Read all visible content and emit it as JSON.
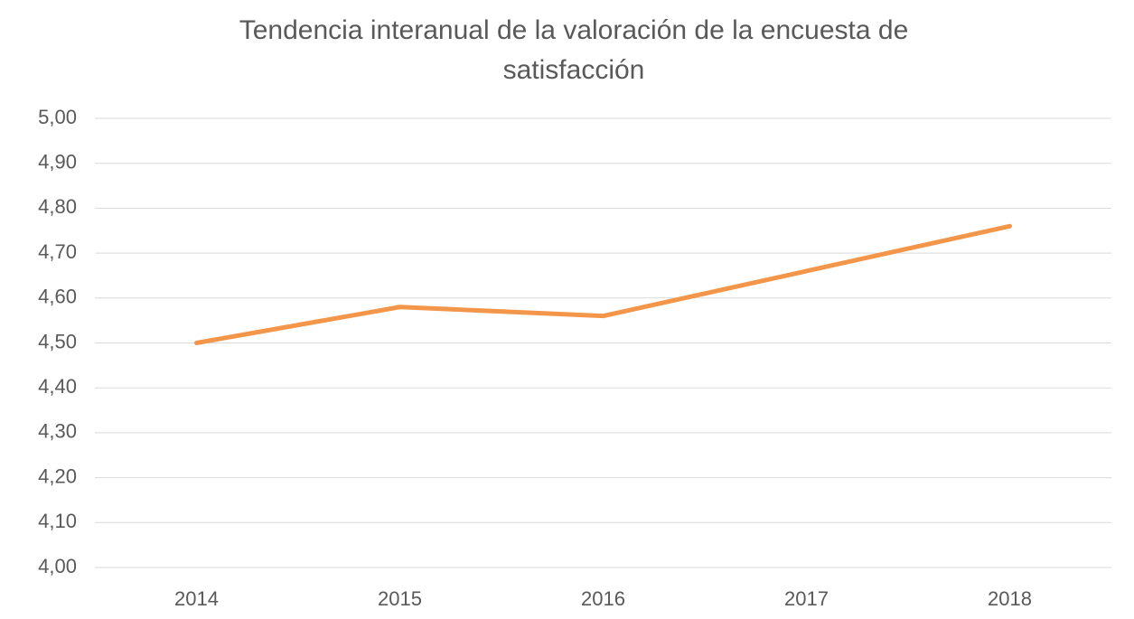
{
  "chart_data": {
    "type": "line",
    "title": "Tendencia interanual de la valoración de la encuesta de satisfacción",
    "categories": [
      "2014",
      "2015",
      "2016",
      "2017",
      "2018"
    ],
    "values": [
      4.5,
      4.58,
      4.56,
      4.66,
      4.76
    ],
    "color": "#f4964a",
    "ylim": [
      4,
      5
    ],
    "yticks": [
      {
        "value": 4,
        "label": "4,00"
      },
      {
        "value": 4.1,
        "label": "4,10"
      },
      {
        "value": 4.2,
        "label": "4,20"
      },
      {
        "value": 4.3,
        "label": "4,30"
      },
      {
        "value": 4.4,
        "label": "4,40"
      },
      {
        "value": 4.5,
        "label": "4,50"
      },
      {
        "value": 4.6,
        "label": "4,60"
      },
      {
        "value": 4.7,
        "label": "4,70"
      },
      {
        "value": 4.8,
        "label": "4,80"
      },
      {
        "value": 4.9,
        "label": "4,90"
      },
      {
        "value": 5,
        "label": "5,00"
      }
    ],
    "grid": true
  }
}
